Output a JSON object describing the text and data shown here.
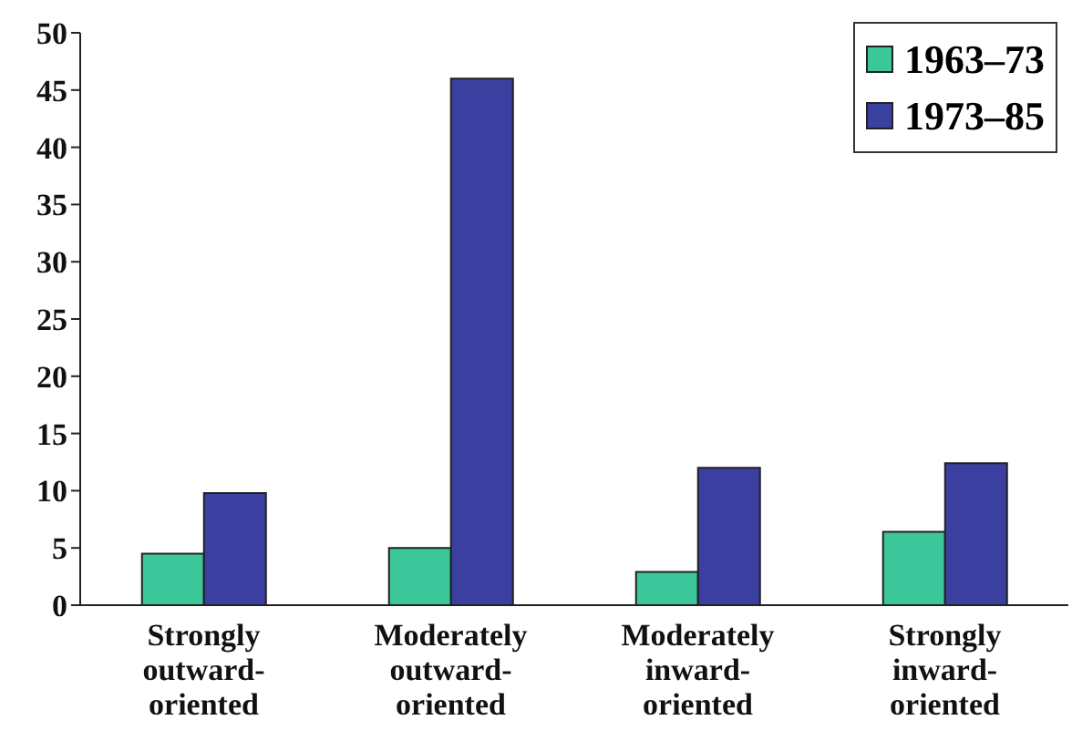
{
  "chart_data": {
    "type": "bar",
    "categories": [
      "Strongly outward-oriented",
      "Moderately outward-oriented",
      "Moderately inward-oriented",
      "Strongly inward-oriented"
    ],
    "series": [
      {
        "name": "1963–73",
        "color": "#3cc79a",
        "values": [
          4.5,
          5,
          2.9,
          6.4
        ]
      },
      {
        "name": "1973–85",
        "color": "#3a3fa0",
        "values": [
          9.8,
          46,
          12,
          12.4
        ]
      }
    ],
    "ylim": [
      0,
      50
    ],
    "yticks": [
      0,
      5,
      10,
      15,
      20,
      25,
      30,
      35,
      40,
      45,
      50
    ],
    "legend": "top right"
  }
}
